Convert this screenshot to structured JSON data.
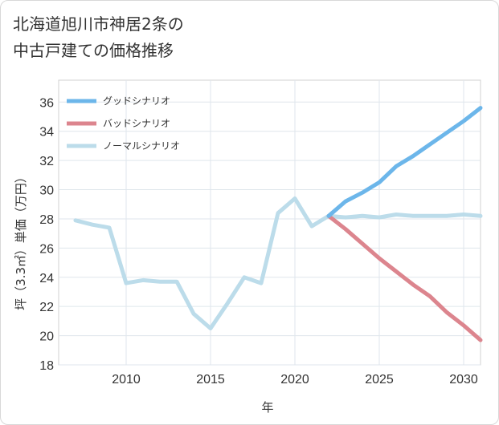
{
  "title_line1": "北海道旭川市神居2条の",
  "title_line2": "中古戸建ての価格推移",
  "chart_data": {
    "type": "line",
    "xlabel": "年",
    "ylabel": "坪（3.3㎡）単価（万円）",
    "xlim": [
      2006,
      2031
    ],
    "ylim": [
      18,
      37.5
    ],
    "xticks": [
      2010,
      2015,
      2020,
      2025,
      2030
    ],
    "yticks": [
      18,
      20,
      22,
      24,
      26,
      28,
      30,
      32,
      34,
      36
    ],
    "grid": true,
    "legend_position": "top-left",
    "series": [
      {
        "name": "グッドシナリオ",
        "color": "#6cb6ea",
        "x": [
          2022,
          2023,
          2024,
          2025,
          2026,
          2027,
          2028,
          2029,
          2030,
          2031
        ],
        "values": [
          28.2,
          29.2,
          29.8,
          30.5,
          31.6,
          32.3,
          33.1,
          33.9,
          34.7,
          35.6
        ]
      },
      {
        "name": "バッドシナリオ",
        "color": "#dc858e",
        "x": [
          2022,
          2023,
          2024,
          2025,
          2026,
          2027,
          2028,
          2029,
          2030,
          2031
        ],
        "values": [
          28.2,
          27.3,
          26.3,
          25.3,
          24.4,
          23.5,
          22.7,
          21.6,
          20.7,
          19.7
        ]
      },
      {
        "name": "ノーマルシナリオ",
        "color": "#bcdcea",
        "x": [
          2007,
          2008,
          2009,
          2010,
          2011,
          2012,
          2013,
          2014,
          2015,
          2016,
          2017,
          2018,
          2019,
          2020,
          2021,
          2022,
          2023,
          2024,
          2025,
          2026,
          2027,
          2028,
          2029,
          2030,
          2031
        ],
        "values": [
          27.9,
          27.6,
          27.4,
          23.6,
          23.8,
          23.7,
          23.7,
          21.5,
          20.5,
          22.2,
          24.0,
          23.6,
          28.4,
          29.4,
          27.5,
          28.2,
          28.1,
          28.2,
          28.1,
          28.3,
          28.2,
          28.2,
          28.2,
          28.3,
          28.2
        ]
      }
    ]
  }
}
